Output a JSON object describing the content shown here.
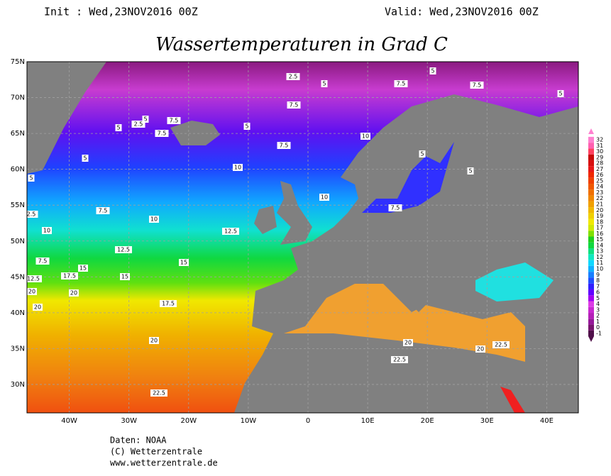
{
  "header": {
    "init": "Init : Wed,23NOV2016 00Z",
    "valid": "Valid: Wed,23NOV2016 00Z",
    "title": "Wassertemperaturen in Grad C"
  },
  "map": {
    "lat_ticks": [
      {
        "value": 75,
        "label": "75N"
      },
      {
        "value": 70,
        "label": "70N"
      },
      {
        "value": 65,
        "label": "65N"
      },
      {
        "value": 60,
        "label": "60N"
      },
      {
        "value": 55,
        "label": "55N"
      },
      {
        "value": 50,
        "label": "50N"
      },
      {
        "value": 45,
        "label": "45N"
      },
      {
        "value": 40,
        "label": "40N"
      },
      {
        "value": 35,
        "label": "35N"
      },
      {
        "value": 30,
        "label": "30N"
      }
    ],
    "lon_ticks": [
      {
        "value": -40,
        "label": "40W"
      },
      {
        "value": -30,
        "label": "30W"
      },
      {
        "value": -20,
        "label": "20W"
      },
      {
        "value": -10,
        "label": "10W"
      },
      0,
      {
        "value": 10,
        "label": "10E"
      },
      {
        "value": 20,
        "label": "20E"
      },
      {
        "value": 30,
        "label": "30E"
      },
      {
        "value": 40,
        "label": "40E"
      }
    ],
    "contour_labels": [
      "2.5",
      "5",
      "5",
      "7.5",
      "7.5",
      "5",
      "7.5",
      "5",
      "7.5",
      "7.5",
      "5",
      "5",
      "2.5",
      "5",
      "10",
      "7.5",
      "10",
      "5",
      "10",
      "7.5",
      "7.5",
      "2.5",
      "10",
      "10",
      "12.5",
      "12.5",
      "15",
      "7.5",
      "15",
      "17.5",
      "15",
      "12.5",
      "20",
      "20",
      "17.5",
      "20",
      "20",
      "20",
      "22.5",
      "20",
      "22.5",
      "22.5",
      "5",
      "5"
    ]
  },
  "colorbar": {
    "ticks": [
      -1,
      0,
      1,
      2,
      3,
      4,
      5,
      6,
      7,
      8,
      9,
      10,
      11,
      12,
      13,
      14,
      15,
      16,
      17,
      18,
      19,
      20,
      21,
      22,
      23,
      24,
      25,
      26,
      27,
      28,
      29,
      30,
      31,
      32
    ],
    "colors": [
      "#50104a",
      "#78146e",
      "#96189a",
      "#b420b8",
      "#c828d0",
      "#dc3ce6",
      "#a000f0",
      "#6000ff",
      "#3020ff",
      "#2050ff",
      "#1880ff",
      "#10b0ff",
      "#10d8ff",
      "#10e8c0",
      "#10e080",
      "#10d840",
      "#20d020",
      "#80e000",
      "#d0e800",
      "#f0e800",
      "#f0d000",
      "#f0b800",
      "#f0a000",
      "#f08800",
      "#f07000",
      "#f05800",
      "#f04000",
      "#f02800",
      "#e81818",
      "#d81010",
      "#c80808",
      "#ff4060",
      "#ff60b0",
      "#ff80d0"
    ]
  },
  "footer": {
    "line1": "Daten: NOAA",
    "line2": "(C) Wetterzentrale",
    "line3": "www.wetterzentrale.de"
  }
}
